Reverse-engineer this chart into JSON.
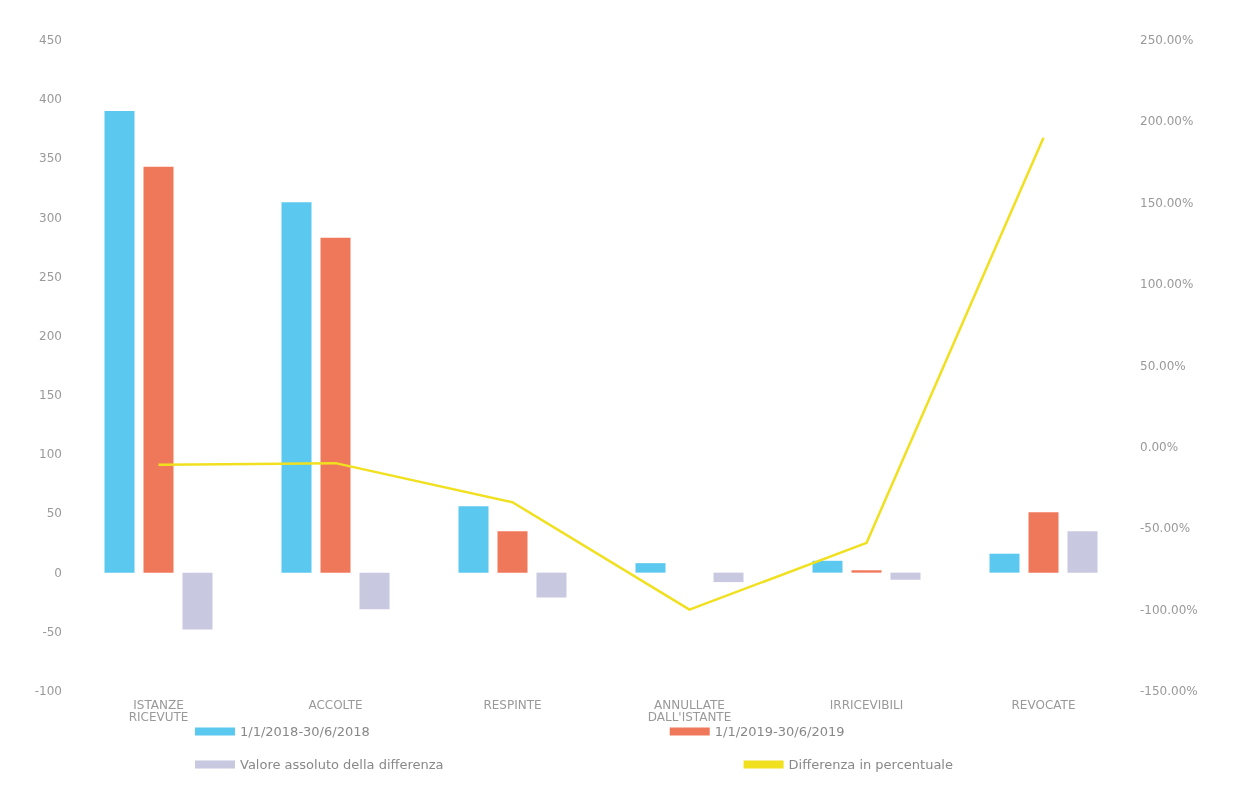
{
  "chart_data": {
    "type": "bar",
    "categories": [
      "ISTANZE\nRICEVUTE",
      "ACCOLTE",
      "RESPINTE",
      "ANNULLATE\nDALL'ISTANTE",
      "IRRICEVIBILI",
      "REVOCATE"
    ],
    "series": [
      {
        "name": "1/1/2018-30/6/2018",
        "color": "#5bc8ef",
        "values": [
          390,
          313,
          56,
          8,
          10,
          16
        ]
      },
      {
        "name": "1/1/2019-30/6/2019",
        "color": "#f0785a",
        "values": [
          343,
          283,
          35,
          0,
          2,
          51
        ]
      },
      {
        "name": "Valore assoluto della differenza",
        "color": "#c8c8e0",
        "values": [
          -48,
          -31,
          -21,
          -8,
          -6,
          35
        ]
      },
      {
        "name": "Differenza in percentuale",
        "type": "line",
        "axis": "y2",
        "color": "#f0e020",
        "values": [
          -11,
          -10,
          -34,
          -100,
          -59,
          190
        ]
      }
    ],
    "ylim": [
      -100,
      450
    ],
    "yticks": [
      -100,
      -50,
      0,
      50,
      100,
      150,
      200,
      250,
      300,
      350,
      400,
      450
    ],
    "y2lim": [
      -150,
      250
    ],
    "y2ticks": [
      {
        "value": -150,
        "label": "-150.00%"
      },
      {
        "value": -100,
        "label": "-100.00%"
      },
      {
        "value": -50,
        "label": "-50.00%"
      },
      {
        "value": 0,
        "label": "0.00%"
      },
      {
        "value": 50,
        "label": "50.00%"
      },
      {
        "value": 100,
        "label": "100.00%"
      },
      {
        "value": 150,
        "label": "150.00%"
      },
      {
        "value": 200,
        "label": "200.00%"
      },
      {
        "value": 250,
        "label": "250.00%"
      }
    ],
    "grid": false,
    "legend": "bottom",
    "marker": "none",
    "line_style": "solid"
  }
}
